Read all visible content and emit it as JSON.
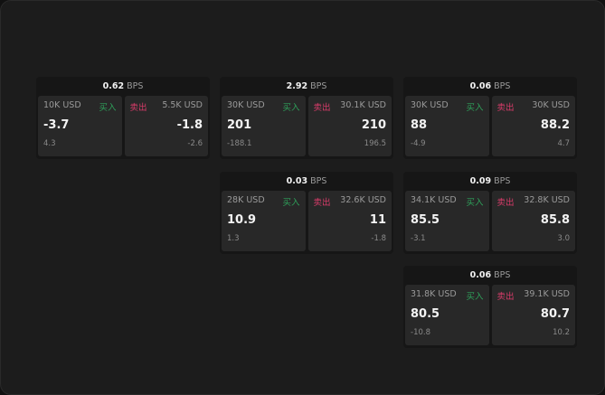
{
  "cards": [
    {
      "bps": "0.62",
      "unit": "BPS",
      "buy_label": "买入",
      "sell_label": "卖出",
      "bid_size": "10K USD",
      "bid": "-3.7",
      "bid_chg": "4.3",
      "ask_size": "5.5K USD",
      "ask": "-1.8",
      "ask_chg": "-2.6"
    },
    {
      "bps": "2.92",
      "unit": "BPS",
      "buy_label": "买入",
      "sell_label": "卖出",
      "bid_size": "30K USD",
      "bid": "201",
      "bid_chg": "-188.1",
      "ask_size": "30.1K USD",
      "ask": "210",
      "ask_chg": "196.5"
    },
    {
      "bps": "0.06",
      "unit": "BPS",
      "buy_label": "买入",
      "sell_label": "卖出",
      "bid_size": "30K USD",
      "bid": "88",
      "bid_chg": "-4.9",
      "ask_size": "30K USD",
      "ask": "88.2",
      "ask_chg": "4.7"
    },
    {
      "bps": "0.03",
      "unit": "BPS",
      "buy_label": "买入",
      "sell_label": "卖出",
      "bid_size": "28K USD",
      "bid": "10.9",
      "bid_chg": "1.3",
      "ask_size": "32.6K USD",
      "ask": "11",
      "ask_chg": "-1.8"
    },
    {
      "bps": "0.09",
      "unit": "BPS",
      "buy_label": "买入",
      "sell_label": "卖出",
      "bid_size": "34.1K USD",
      "bid": "85.5",
      "bid_chg": "-3.1",
      "ask_size": "32.8K USD",
      "ask": "85.8",
      "ask_chg": "3.0"
    },
    {
      "bps": "0.06",
      "unit": "BPS",
      "buy_label": "买入",
      "sell_label": "卖出",
      "bid_size": "31.8K USD",
      "bid": "80.5",
      "bid_chg": "-10.8",
      "ask_size": "39.1K USD",
      "ask": "80.7",
      "ask_chg": "10.2"
    }
  ],
  "colors": {
    "buy": "#2ea05a",
    "sell": "#d93c6a"
  }
}
